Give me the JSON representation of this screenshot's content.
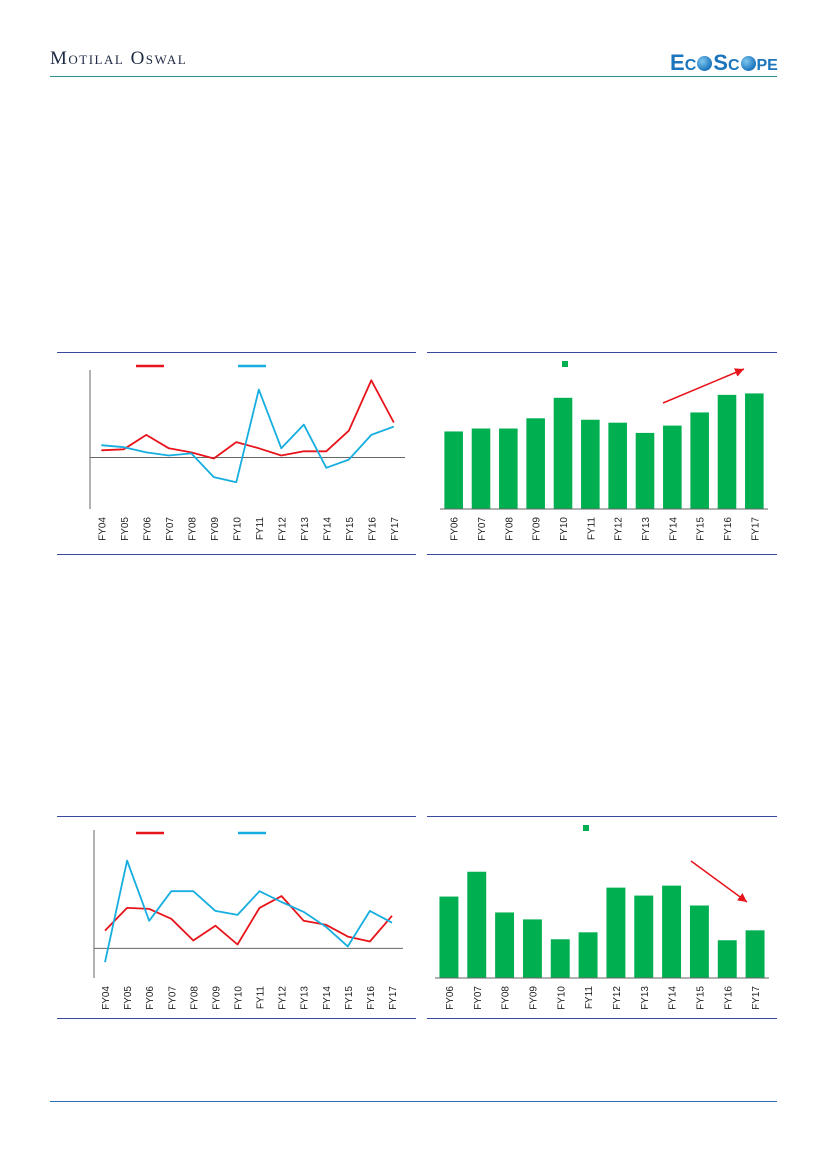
{
  "header": {
    "brand": "Motilal Oswal",
    "logo_text": [
      "E",
      "C",
      "S",
      "C",
      "PE"
    ]
  },
  "colors": {
    "red_series": "#e8141b",
    "cyan_series": "#16aee0",
    "green_bars": "#00b050",
    "axis": "#666666",
    "rule": "#3a4a9a"
  },
  "chart_data": [
    {
      "type": "line",
      "x": [
        "FY04",
        "FY05",
        "FY06",
        "FY07",
        "FY08",
        "FY09",
        "FY10",
        "FY11",
        "FY12",
        "FY13",
        "FY14",
        "FY15",
        "FY16",
        "FY17"
      ],
      "series": [
        {
          "color": "#e8141b",
          "values": [
            0.7,
            0.8,
            2.2,
            0.9,
            0.5,
            -0.1,
            1.5,
            0.9,
            0.2,
            0.6,
            0.6,
            2.6,
            7.5,
            3.4
          ]
        },
        {
          "color": "#16aee0",
          "values": [
            1.2,
            1.0,
            0.5,
            0.2,
            0.4,
            -1.9,
            -2.4,
            6.6,
            0.9,
            3.2,
            -1.0,
            -0.2,
            2.2,
            3.0
          ]
        }
      ],
      "ylim": [
        -5,
        8.5
      ],
      "baseline": 0,
      "legend": "top",
      "grid": false
    },
    {
      "type": "bar",
      "categories": [
        "FY06",
        "FY07",
        "FY08",
        "FY09",
        "FY10",
        "FY11",
        "FY12",
        "FY13",
        "FY14",
        "FY15",
        "FY16",
        "FY17"
      ],
      "values": [
        5.3,
        5.5,
        5.5,
        6.2,
        7.6,
        6.1,
        5.9,
        5.2,
        5.7,
        6.6,
        7.8,
        7.9
      ],
      "ylim": [
        0,
        9.5
      ],
      "color": "#00b050",
      "legend": "top",
      "trend_arrow": "up",
      "grid": false
    },
    {
      "type": "line",
      "x": [
        "FY04",
        "FY05",
        "FY06",
        "FY07",
        "FY08",
        "FY09",
        "FY10",
        "FY11",
        "FY12",
        "FY13",
        "FY14",
        "FY15",
        "FY16",
        "FY17"
      ],
      "series": [
        {
          "color": "#e8141b",
          "values": [
            1.8,
            4.1,
            4.0,
            3.0,
            0.8,
            2.3,
            0.4,
            4.1,
            5.3,
            2.8,
            2.4,
            1.2,
            0.7,
            3.3
          ]
        },
        {
          "color": "#16aee0",
          "values": [
            -1.4,
            8.9,
            2.8,
            5.8,
            5.8,
            3.8,
            3.4,
            5.8,
            4.7,
            3.7,
            2.2,
            0.2,
            3.8,
            2.6
          ]
        }
      ],
      "ylim": [
        -3,
        12
      ],
      "baseline": 0,
      "legend": "top",
      "grid": false
    },
    {
      "type": "bar",
      "categories": [
        "FY06",
        "FY07",
        "FY08",
        "FY09",
        "FY10",
        "FY11",
        "FY12",
        "FY13",
        "FY14",
        "FY15",
        "FY16",
        "FY17"
      ],
      "values": [
        8.2,
        10.7,
        6.6,
        5.9,
        3.9,
        4.6,
        9.1,
        8.3,
        9.3,
        7.3,
        3.8,
        4.8
      ],
      "ylim": [
        0,
        14.5
      ],
      "color": "#00b050",
      "legend": "top",
      "trend_arrow": "down",
      "grid": false
    }
  ]
}
